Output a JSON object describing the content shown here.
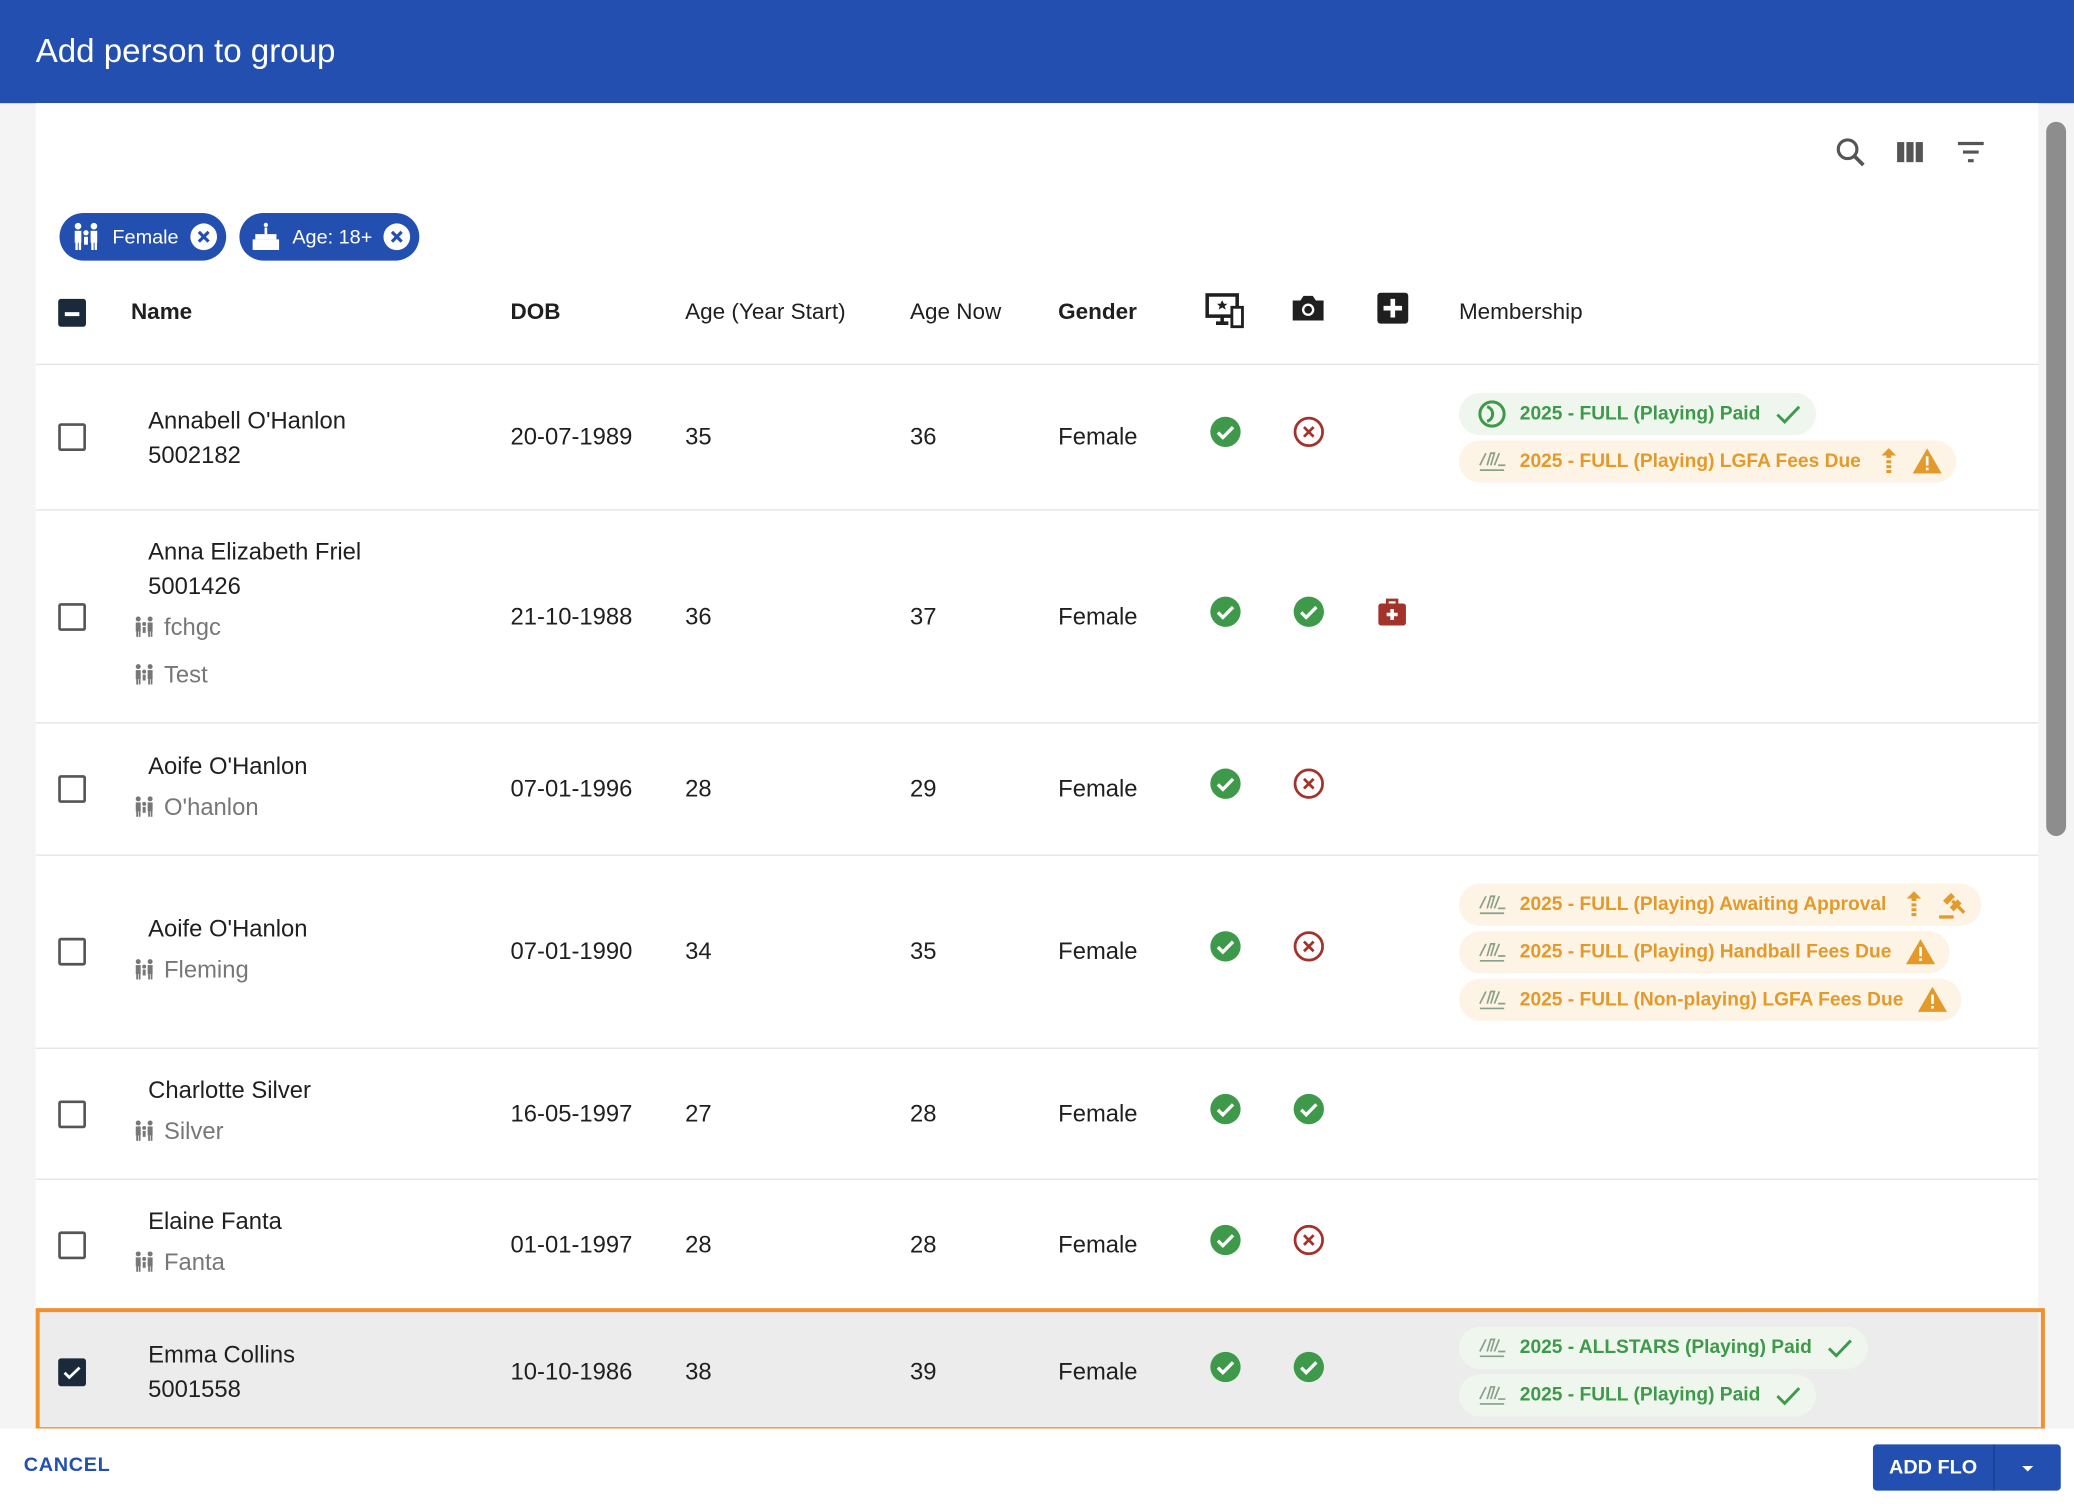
{
  "header": {
    "title": "Add person to group"
  },
  "filters": [
    {
      "icon": "gender",
      "label": "Female"
    },
    {
      "icon": "age",
      "label": "Age: 18+"
    }
  ],
  "table": {
    "columns": [
      "Name",
      "DOB",
      "Age (Year Start)",
      "Age Now",
      "Gender",
      "Membership"
    ],
    "rows": [
      {
        "name": "Annabell O'Hanlon",
        "id": "5002182",
        "families": [],
        "dob": "20-07-1989",
        "age_year_start": 35,
        "age_now": 36,
        "gender": "Female",
        "online": true,
        "photo": false,
        "medical": false,
        "selected": false,
        "memberships": [
          {
            "org": "camogie",
            "label": "2025 - FULL (Playing) Paid",
            "status": "paid"
          },
          {
            "org": "lgfa",
            "label": "2025 - FULL (Playing) LGFA Fees Due",
            "status": "due"
          }
        ]
      },
      {
        "name": "Anna Elizabeth Friel",
        "id": "5001426",
        "families": [
          "fchgc",
          "Test"
        ],
        "dob": "21-10-1988",
        "age_year_start": 36,
        "age_now": 37,
        "gender": "Female",
        "online": true,
        "photo": true,
        "medical": true,
        "selected": false,
        "memberships": []
      },
      {
        "name": "Aoife O'Hanlon",
        "families": [
          "O'hanlon"
        ],
        "dob": "07-01-1996",
        "age_year_start": 28,
        "age_now": 29,
        "gender": "Female",
        "online": true,
        "photo": false,
        "medical": false,
        "selected": false,
        "memberships": []
      },
      {
        "name": "Aoife O'Hanlon",
        "families": [
          "Fleming"
        ],
        "dob": "07-01-1990",
        "age_year_start": 34,
        "age_now": 35,
        "gender": "Female",
        "online": true,
        "photo": false,
        "medical": false,
        "selected": false,
        "memberships": [
          {
            "org": "lgfa",
            "label": "2025 - FULL (Playing) Awaiting Approval",
            "status": "awaiting"
          },
          {
            "org": "gaa",
            "label": "2025 - FULL (Playing) Handball Fees Due",
            "status": "warn"
          },
          {
            "org": "lgfa",
            "label": "2025 - FULL (Non-playing) LGFA Fees Due",
            "status": "warn"
          }
        ]
      },
      {
        "name": "Charlotte Silver",
        "families": [
          "Silver"
        ],
        "dob": "16-05-1997",
        "age_year_start": 27,
        "age_now": 28,
        "gender": "Female",
        "online": true,
        "photo": true,
        "medical": false,
        "selected": false,
        "memberships": []
      },
      {
        "name": "Elaine Fanta",
        "families": [
          "Fanta"
        ],
        "dob": "01-01-1997",
        "age_year_start": 28,
        "age_now": 28,
        "gender": "Female",
        "online": true,
        "photo": false,
        "medical": false,
        "selected": false,
        "memberships": []
      },
      {
        "name": "Emma Collins",
        "id": "5001558",
        "families": [],
        "dob": "10-10-1986",
        "age_year_start": 38,
        "age_now": 39,
        "gender": "Female",
        "online": true,
        "photo": true,
        "medical": false,
        "selected": true,
        "memberships": [
          {
            "org": "lgfa",
            "label": "2025 - ALLSTARS (Playing) Paid",
            "status": "paid"
          },
          {
            "org": "lgfa",
            "label": "2025 - FULL (Playing) Paid",
            "status": "paid"
          }
        ]
      }
    ]
  },
  "footer": {
    "cancel": "CANCEL",
    "submit": "ADD FLO"
  }
}
